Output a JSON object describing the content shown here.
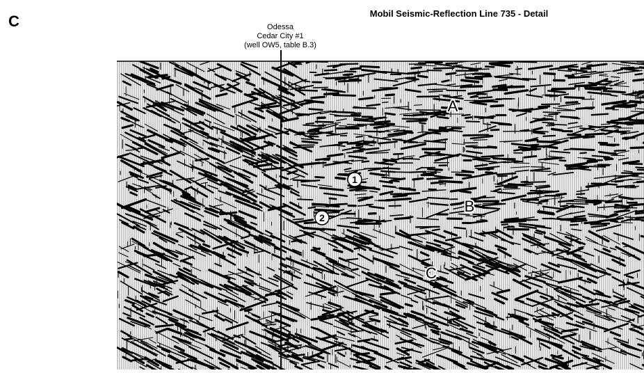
{
  "panel_label": "C",
  "title": "Mobil Seismic-Reflection Line 735 - Detail",
  "well": {
    "lines": [
      "Odessa",
      "Cedar City #1",
      "(well OW5, table B.3)"
    ]
  },
  "letters": [
    "A",
    "B",
    "C"
  ],
  "circled": [
    "1",
    "2"
  ]
}
